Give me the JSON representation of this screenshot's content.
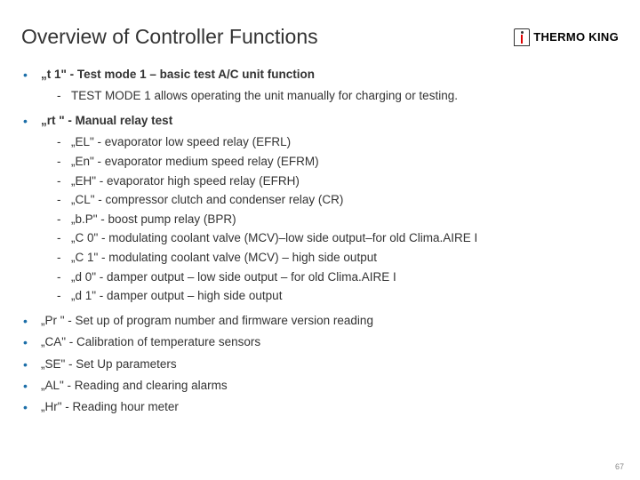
{
  "title": "Overview of Controller Functions",
  "logo_text": "THERMO KING",
  "items": [
    {
      "label": "„t 1\" - Test mode 1 – basic test A/C unit function",
      "bold": true,
      "sub": [
        "TEST MODE 1 allows operating the unit manually for charging or testing."
      ]
    },
    {
      "label": "„rt \" - Manual relay test",
      "bold": true,
      "sub": [
        "„EL\" - evaporator low speed relay (EFRL)",
        "„En\" - evaporator medium speed relay (EFRM)",
        "„EH\" - evaporator high speed relay (EFRH)",
        "„CL\" - compressor clutch and condenser relay (CR)",
        "„b.P\" - boost pump relay (BPR)",
        "„C 0\" - modulating coolant valve (MCV)–low side output–for old Clima.AIRE I",
        "„C 1\" - modulating coolant valve (MCV) – high side output",
        "„d 0\" - damper output – low side output – for old Clima.AIRE I",
        "„d 1\" - damper output – high side output"
      ]
    },
    {
      "label": "„Pr \" - Set up of program number and firmware version reading",
      "bold": false,
      "sub": []
    },
    {
      "label": "„CA\" - Calibration of temperature sensors",
      "bold": false,
      "sub": []
    },
    {
      "label": "„SE\" - Set Up parameters",
      "bold": false,
      "sub": []
    },
    {
      "label": "„AL\" - Reading and clearing alarms",
      "bold": false,
      "sub": []
    },
    {
      "label": "„Hr\" - Reading hour meter",
      "bold": false,
      "sub": []
    }
  ],
  "page_number": "67",
  "colors": {
    "bullet": "#1b6ea8",
    "text": "#333333",
    "background": "#ffffff"
  }
}
